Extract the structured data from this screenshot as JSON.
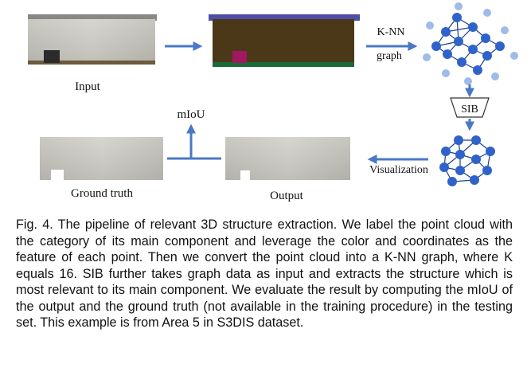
{
  "figure": {
    "labels": {
      "input": "Input",
      "knn": "K-NN",
      "graph": "graph",
      "sib": "SIB",
      "miou": "mIoU",
      "visualization": "Visualization",
      "ground_truth": "Ground truth",
      "output": "Output"
    },
    "colors": {
      "arrow": "#4a79c4",
      "node_dark": "#2f63c9",
      "node_light": "#9fbbe6",
      "edge": "#1c3f8c",
      "seg_top": "#4f4ea6",
      "seg_body": "#4b3818",
      "seg_floor": "#1a6a3a",
      "seg_object": "#a2175f"
    },
    "icons": [
      "arrow-right-icon",
      "arrow-down-icon",
      "arrow-left-icon",
      "arrow-up-icon",
      "sib-trapezoid-icon"
    ]
  },
  "caption": {
    "text": "Fig. 4. The pipeline of relevant 3D structure extraction. We label the point cloud with the category of its main component and leverage the color and coordinates as the feature of each point. Then we convert the point cloud into a K-NN graph, where K equals 16. SIB further takes graph data as input and extracts the structure which is most relevant to its main component. We evaluate the result by computing the mIoU of the output and the ground truth (not available in the training procedure) in the testing set. This example is from Area 5 in S3DIS dataset."
  }
}
